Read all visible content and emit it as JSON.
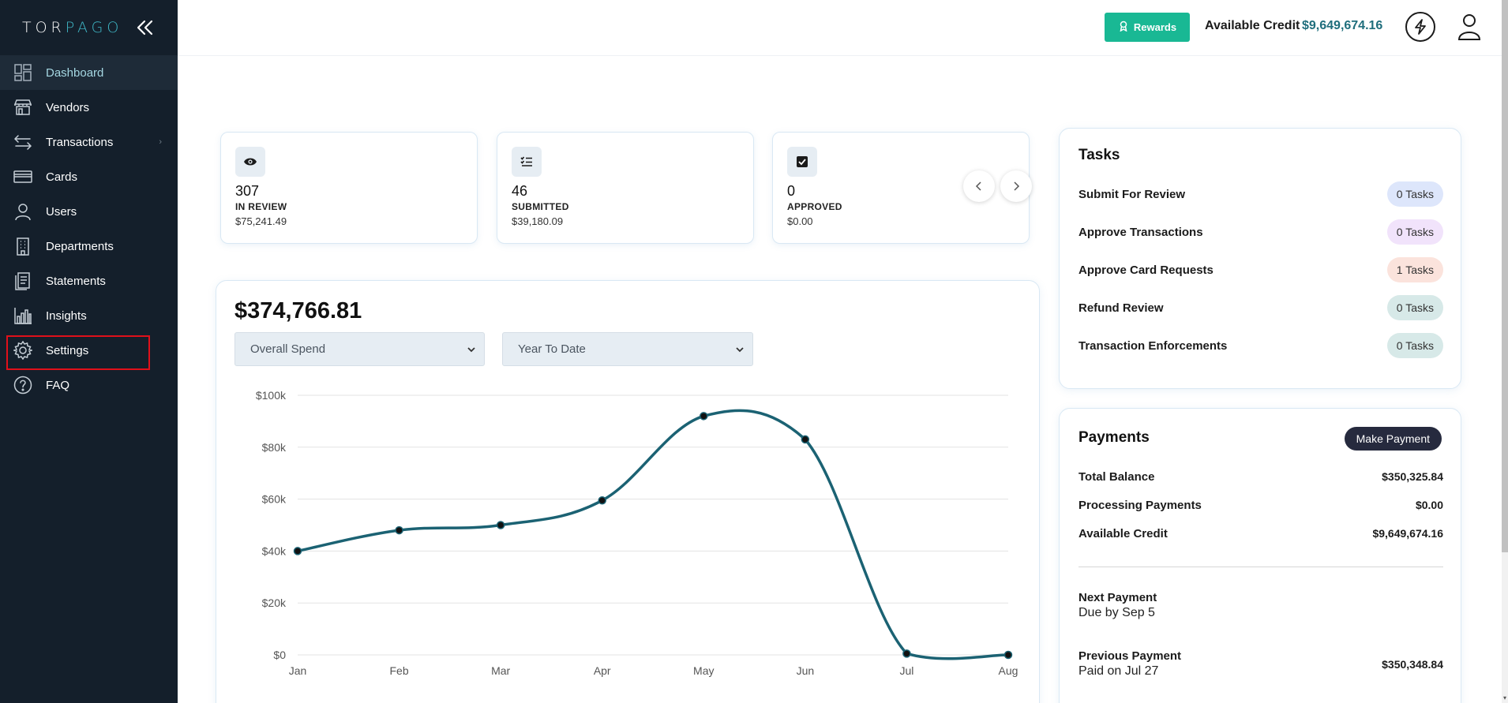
{
  "sidebar": {
    "logo": {
      "part1": "TOR",
      "part2": "PAGO"
    },
    "items": [
      {
        "label": "Dashboard",
        "icon": "dashboard-icon"
      },
      {
        "label": "Vendors",
        "icon": "store-icon"
      },
      {
        "label": "Transactions",
        "icon": "transfer-icon"
      },
      {
        "label": "Cards",
        "icon": "card-icon"
      },
      {
        "label": "Users",
        "icon": "user-icon"
      },
      {
        "label": "Departments",
        "icon": "building-icon"
      },
      {
        "label": "Statements",
        "icon": "document-icon"
      },
      {
        "label": "Insights",
        "icon": "bar-chart-icon"
      },
      {
        "label": "Settings",
        "icon": "gear-icon"
      },
      {
        "label": "FAQ",
        "icon": "help-icon"
      }
    ]
  },
  "topbar": {
    "rewards_label": "Rewards",
    "credit_label": "Available Credit",
    "credit_value": "$9,649,674.16"
  },
  "stats": [
    {
      "count": "307",
      "label": "IN REVIEW",
      "amount": "$75,241.49",
      "icon": "eye-icon"
    },
    {
      "count": "46",
      "label": "SUBMITTED",
      "amount": "$39,180.09",
      "icon": "checklist-icon"
    },
    {
      "count": "0",
      "label": "APPROVED",
      "amount": "$0.00",
      "icon": "checkbox-icon"
    }
  ],
  "spend": {
    "total": "$374,766.81",
    "metric_select": "Overall Spend",
    "period_select": "Year To Date"
  },
  "chart_data": {
    "type": "line",
    "categories": [
      "Jan",
      "Feb",
      "Mar",
      "Apr",
      "May",
      "Jun",
      "Jul",
      "Aug"
    ],
    "series": [
      {
        "values": [
          40000,
          48000,
          50000,
          59500,
          92000,
          83000,
          500,
          0
        ]
      }
    ],
    "yticks": [
      "$0",
      "$20k",
      "$40k",
      "$60k",
      "$80k",
      "$100k"
    ],
    "ylim": [
      0,
      100000
    ],
    "line_color": "#1b6273",
    "grid": true
  },
  "tasks": {
    "title": "Tasks",
    "items": [
      {
        "label": "Submit For Review",
        "badge": "0 Tasks",
        "color": "#dde6fb"
      },
      {
        "label": "Approve Transactions",
        "badge": "0 Tasks",
        "color": "#f1e3fb"
      },
      {
        "label": "Approve Card Requests",
        "badge": "1 Tasks",
        "color": "#fbe3dc"
      },
      {
        "label": "Refund Review",
        "badge": "0 Tasks",
        "color": "#d7e9e8"
      },
      {
        "label": "Transaction Enforcements",
        "badge": "0 Tasks",
        "color": "#d7e9e8"
      }
    ]
  },
  "payments": {
    "title": "Payments",
    "button": "Make Payment",
    "rows": [
      {
        "label": "Total Balance",
        "value": "$350,325.84"
      },
      {
        "label": "Processing Payments",
        "value": "$0.00"
      },
      {
        "label": "Available Credit",
        "value": "$9,649,674.16"
      }
    ],
    "next_label": "Next Payment",
    "next_sub": "Due by Sep 5",
    "prev_label": "Previous Payment",
    "prev_sub": "Paid on Jul 27",
    "prev_value": "$350,348.84"
  }
}
